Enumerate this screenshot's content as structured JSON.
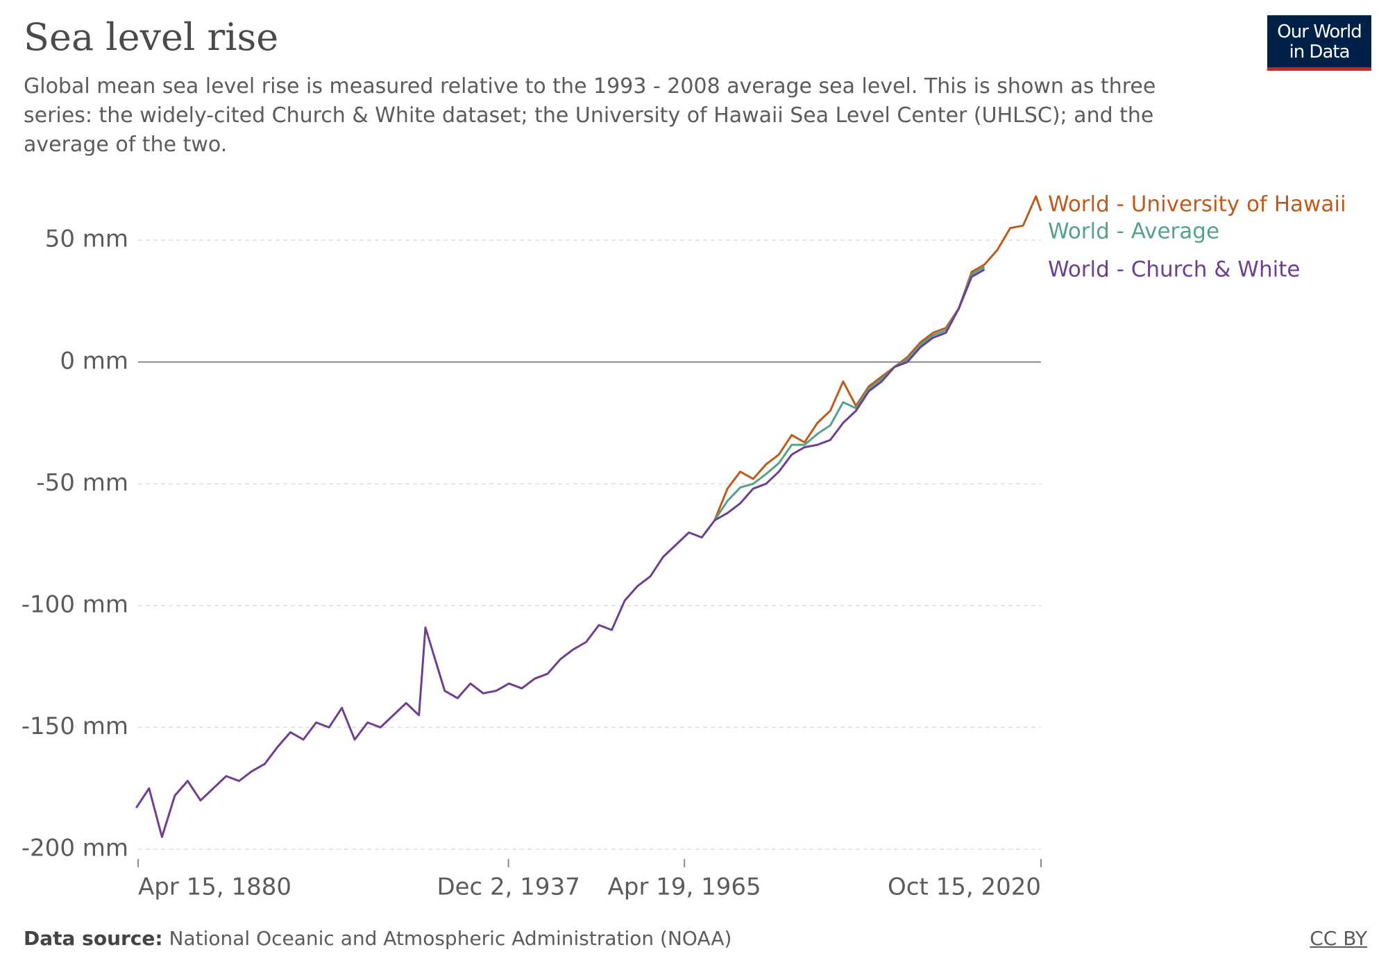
{
  "chart_data": {
    "type": "line",
    "title": "Sea level rise",
    "subtitle": "Global mean sea level rise is measured relative to the 1993 - 2008 average sea level. This is shown as three series: the widely-cited Church & White dataset; the University of Hawaii Sea Level Center (UHLSC); and the average of the two.",
    "logo": [
      "Our World",
      "in Data"
    ],
    "source_label": "Data source:",
    "source": "National Oceanic and Atmospheric Administration (NOAA)",
    "license": "CC BY",
    "xlim": [
      1880.29,
      2020.79
    ],
    "xticks": [
      {
        "value": 1880.29,
        "label": "Apr 15, 1880"
      },
      {
        "value": 1937.92,
        "label": "Dec 2, 1937"
      },
      {
        "value": 1965.3,
        "label": "Apr 19, 1965"
      },
      {
        "value": 2020.79,
        "label": "Oct 15, 2020"
      }
    ],
    "ylim": [
      -204,
      70
    ],
    "yticks": [
      {
        "value": -200,
        "label": "-200 mm"
      },
      {
        "value": -150,
        "label": "-150 mm"
      },
      {
        "value": -100,
        "label": "-100 mm"
      },
      {
        "value": -50,
        "label": "-50 mm"
      },
      {
        "value": 0,
        "label": "0 mm"
      },
      {
        "value": 50,
        "label": "50 mm"
      }
    ],
    "grid": true,
    "series": [
      {
        "name": "World - University of Hawaii",
        "color": "#be5a1c",
        "x": [
          1970,
          1972,
          1974,
          1976,
          1978,
          1980,
          1982,
          1984,
          1986,
          1988,
          1990,
          1992,
          1994,
          1996,
          1998,
          2000,
          2002,
          2004,
          2006,
          2008,
          2010,
          2012,
          2014,
          2016,
          2018,
          2020,
          2020.79
        ],
        "values": [
          -65,
          -52,
          -45,
          -48,
          -42,
          -38,
          -30,
          -33,
          -25,
          -20,
          -8,
          -18,
          -10,
          -6,
          -2,
          2,
          8,
          12,
          14,
          22,
          37,
          40,
          46,
          55,
          56,
          68,
          62
        ]
      },
      {
        "name": "World - Average",
        "color": "#55a387",
        "x": [
          1970,
          1972,
          1974,
          1976,
          1978,
          1980,
          1982,
          1984,
          1986,
          1988,
          1990,
          1992,
          1994,
          1996,
          1998,
          2000,
          2002,
          2004,
          2006,
          2008,
          2010,
          2012
        ],
        "values": [
          -65,
          -57,
          -51.5,
          -50,
          -46,
          -41.5,
          -34,
          -34,
          -29.5,
          -26,
          -16.5,
          -19,
          -11,
          -7,
          -2,
          1,
          7,
          11,
          13,
          22,
          36,
          39
        ]
      },
      {
        "name": "World - Church & White",
        "color": "#6d3e91",
        "x": [
          1880,
          1882,
          1884,
          1886,
          1888,
          1890,
          1892,
          1894,
          1896,
          1898,
          1900,
          1902,
          1904,
          1906,
          1908,
          1910,
          1912,
          1914,
          1916,
          1918,
          1920,
          1922,
          1924,
          1925,
          1928,
          1930,
          1932,
          1934,
          1936,
          1938,
          1940,
          1942,
          1944,
          1946,
          1948,
          1950,
          1952,
          1954,
          1956,
          1958,
          1960,
          1962,
          1964,
          1966,
          1968,
          1970,
          1972,
          1974,
          1976,
          1978,
          1980,
          1982,
          1984,
          1986,
          1988,
          1990,
          1992,
          1994,
          1996,
          1998,
          2000,
          2002,
          2004,
          2006,
          2008,
          2010,
          2012
        ],
        "values": [
          -183,
          -175,
          -195,
          -178,
          -172,
          -180,
          -175,
          -170,
          -172,
          -168,
          -165,
          -158,
          -152,
          -155,
          -148,
          -150,
          -142,
          -155,
          -148,
          -150,
          -145,
          -140,
          -145,
          -109,
          -135,
          -138,
          -132,
          -136,
          -135,
          -132,
          -134,
          -130,
          -128,
          -122,
          -118,
          -115,
          -108,
          -110,
          -98,
          -92,
          -88,
          -80,
          -75,
          -70,
          -72,
          -65,
          -62,
          -58,
          -52,
          -50,
          -45,
          -38,
          -35,
          -34,
          -32,
          -25,
          -20,
          -12,
          -8,
          -2,
          0,
          6,
          10,
          12,
          22,
          35,
          38
        ]
      }
    ]
  }
}
